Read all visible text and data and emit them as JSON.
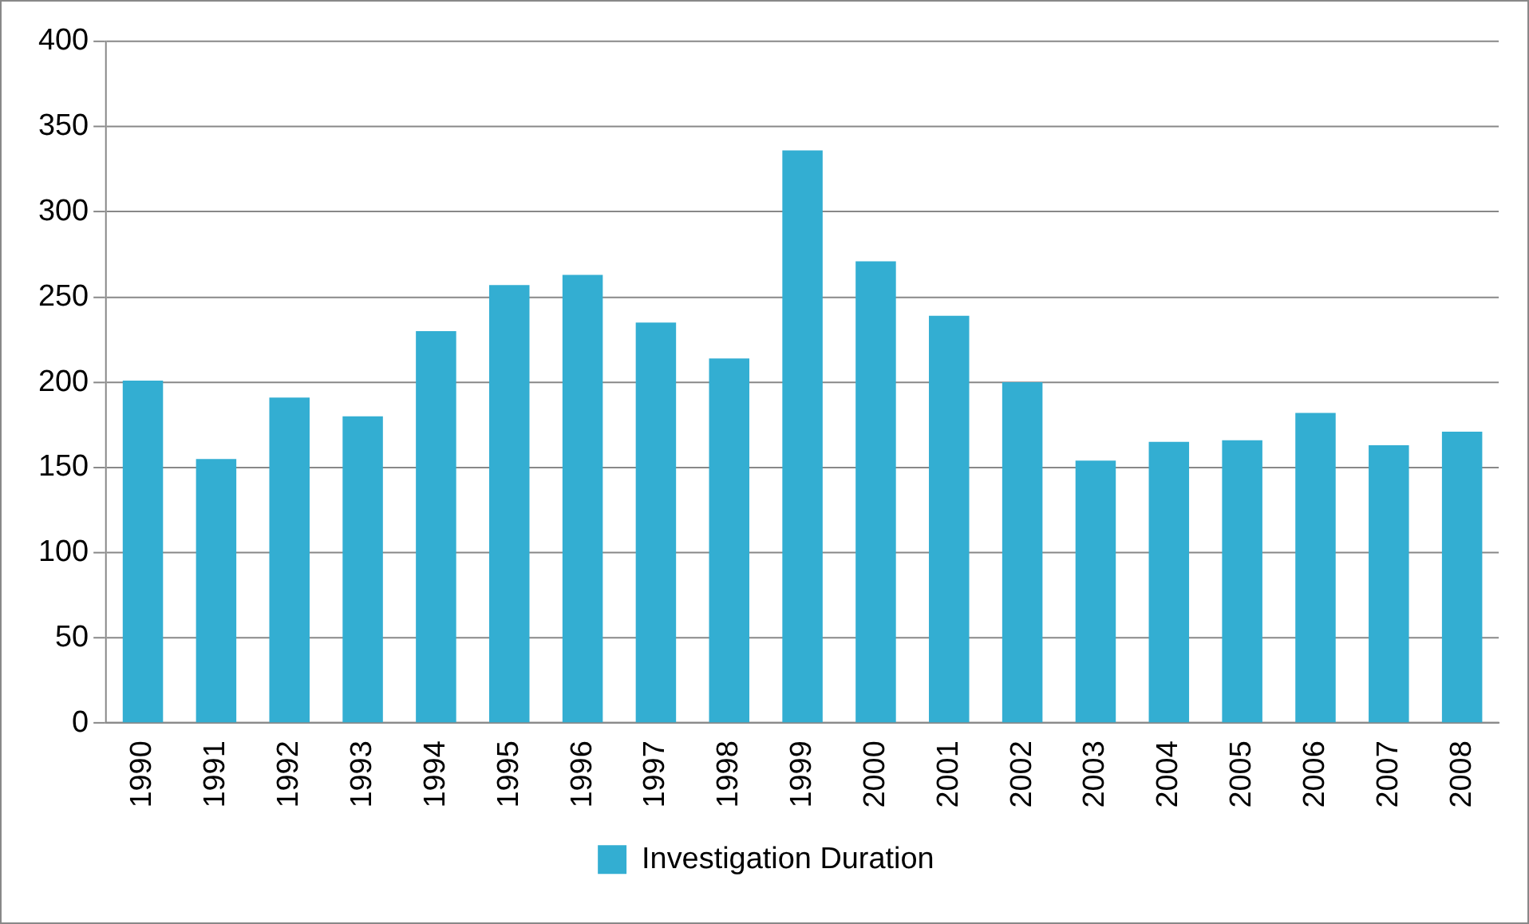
{
  "chart_data": {
    "type": "bar",
    "categories": [
      "1990",
      "1991",
      "1992",
      "1993",
      "1994",
      "1995",
      "1996",
      "1997",
      "1998",
      "1999",
      "2000",
      "2001",
      "2002",
      "2003",
      "2004",
      "2005",
      "2006",
      "2007",
      "2008"
    ],
    "series": [
      {
        "name": "Investigation Duration",
        "color": "#33aed2",
        "values": [
          201,
          155,
          191,
          180,
          230,
          257,
          263,
          235,
          214,
          336,
          271,
          239,
          200,
          154,
          165,
          166,
          182,
          163,
          171
        ]
      }
    ],
    "ylim": [
      0,
      400
    ],
    "yticks": [
      0,
      50,
      100,
      150,
      200,
      250,
      300,
      350,
      400
    ],
    "grid": "y",
    "legend": "bottom"
  }
}
